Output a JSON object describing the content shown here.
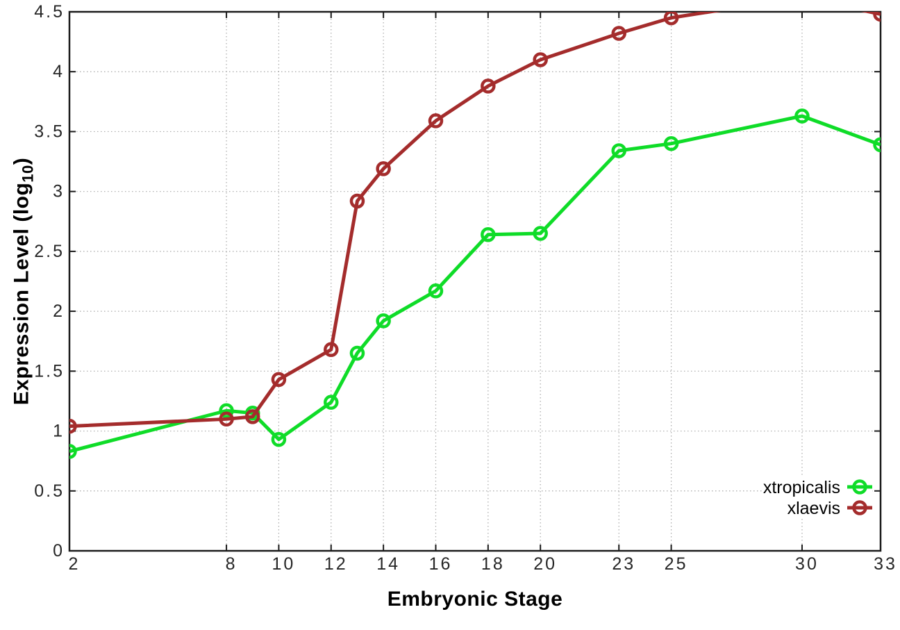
{
  "chart_data": {
    "type": "line",
    "title": "",
    "xlabel": "Embryonic Stage",
    "ylabel": "Expression Level (log10)",
    "ylabel_parts": {
      "main": "Expression Level (log",
      "sub": "10",
      "end": ")"
    },
    "xlim": [
      2,
      33
    ],
    "ylim": [
      0,
      4.5
    ],
    "grid": true,
    "legend_position": "bottom-right",
    "x_ticks": [
      2,
      8,
      10,
      12,
      14,
      16,
      18,
      20,
      23,
      25,
      30,
      33
    ],
    "x_tick_labels": [
      "2",
      "8",
      "10",
      "12",
      "14",
      "16",
      "18",
      "20",
      "23",
      "25",
      "30",
      "33"
    ],
    "y_ticks": [
      0,
      0.5,
      1,
      1.5,
      2,
      2.5,
      3,
      3.5,
      4,
      4.5
    ],
    "y_tick_labels": [
      "0",
      "0.5",
      "1",
      "1.5",
      "2",
      "2.5",
      "3",
      "3.5",
      "4",
      "4.5"
    ],
    "x": [
      2,
      8,
      9,
      10,
      12,
      13,
      14,
      16,
      18,
      20,
      23,
      25,
      30,
      33
    ],
    "series": [
      {
        "name": "xtropicalis",
        "color": "#0fdc28",
        "values": [
          0.83,
          1.17,
          1.15,
          0.93,
          1.24,
          1.65,
          1.92,
          2.17,
          2.64,
          2.65,
          3.34,
          3.4,
          3.63,
          3.39
        ]
      },
      {
        "name": "xlaevis",
        "color": "#a42c2c",
        "values": [
          1.04,
          1.1,
          1.12,
          1.43,
          1.68,
          2.92,
          3.19,
          3.59,
          3.88,
          4.1,
          4.32,
          4.45,
          4.62,
          4.48
        ]
      }
    ],
    "styles": {
      "line_width": 5,
      "marker_radius": 8.5,
      "marker_stroke": 4.5,
      "grid_color": "#a8a8a8",
      "border_color": "#1a1a1a",
      "text_color": "#262626",
      "background": "#ffffff"
    }
  }
}
